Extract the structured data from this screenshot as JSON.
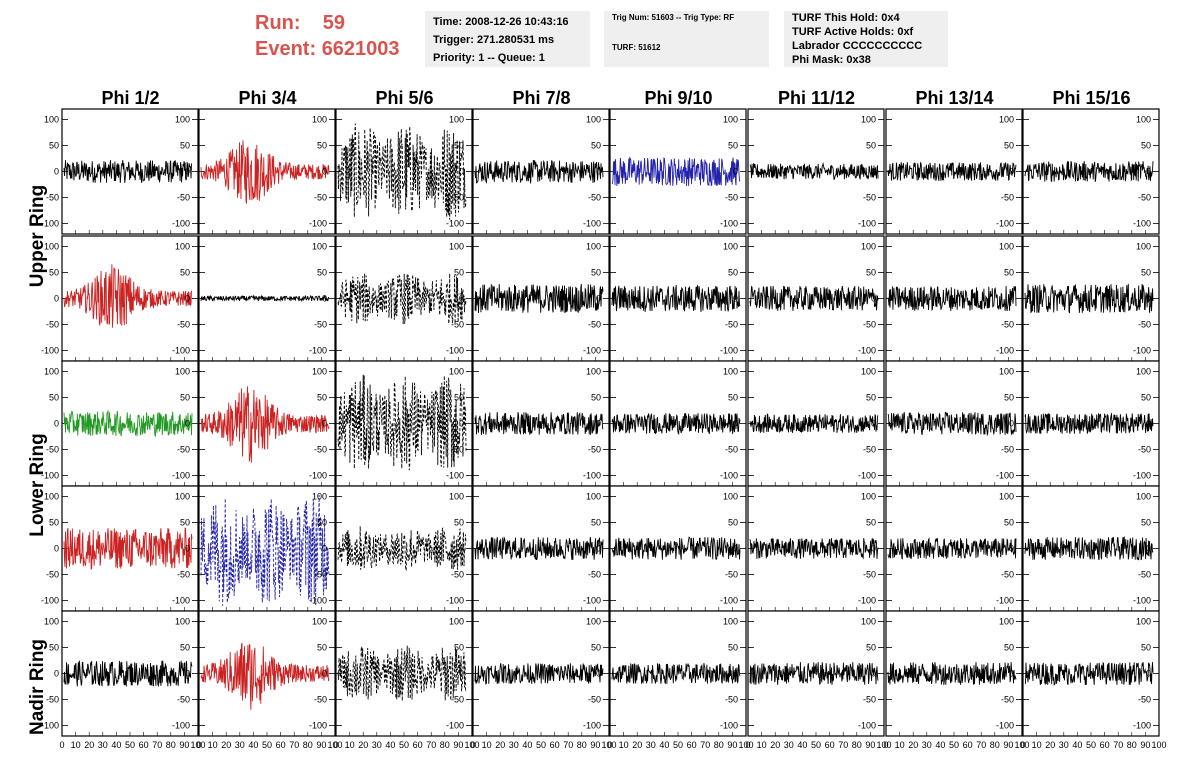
{
  "header": {
    "run_label": "Run:",
    "run_value": "59",
    "event_label": "Event:",
    "event_value": "6621003",
    "time_line": "Time: 2008-12-26 10:43:16",
    "trigger_line": "Trigger: 271.280531 ms",
    "priority_line": "Priority: 1 -- Queue: 1",
    "trig_num_line": "Trig Num: 51603 -- Trig Type: RF",
    "turf_line": "TURF: 51612",
    "turf_hold_line": "TURF This Hold: 0x4",
    "turf_active_line": "TURF Active Holds: 0xf",
    "labrador_line": "Labrador CCCCCCCCCC",
    "phi_mask_line": "Phi Mask: 0x38"
  },
  "chart_data": {
    "type": "line",
    "columns": [
      "Phi 1/2",
      "Phi 3/4",
      "Phi 5/6",
      "Phi 7/8",
      "Phi 9/10",
      "Phi 11/12",
      "Phi 13/14",
      "Phi 15/16"
    ],
    "rows": [
      "Upper Ring",
      "Upper Ring",
      "Lower Ring",
      "Lower Ring",
      "Nadir Ring"
    ],
    "ylim": [
      -120,
      120
    ],
    "xlim": [
      0,
      100
    ],
    "y_ticks": [
      100,
      50,
      0,
      -50,
      -100
    ],
    "x_ticks": [
      0,
      10,
      20,
      30,
      40,
      50,
      60,
      70,
      80,
      90,
      100
    ],
    "colors": {
      "black": "#000000",
      "red": "#cc2222",
      "blue": "#2222aa",
      "green": "#229922"
    },
    "panels": [
      [
        {
          "c": "black",
          "a": 22,
          "p": "noise"
        },
        {
          "c": "red",
          "a": 60,
          "p": "burst"
        },
        {
          "c": "black",
          "a": 95,
          "p": "dash"
        },
        {
          "c": "black",
          "a": 22,
          "p": "noise"
        },
        {
          "c": "blue",
          "a": 28,
          "p": "noise"
        },
        {
          "c": "black",
          "a": 15,
          "p": "noise"
        },
        {
          "c": "black",
          "a": 18,
          "p": "noise"
        },
        {
          "c": "black",
          "a": 20,
          "p": "noise"
        }
      ],
      [
        {
          "c": "red",
          "a": 60,
          "p": "burst"
        },
        {
          "c": "black",
          "a": 5,
          "p": "noise"
        },
        {
          "c": "black",
          "a": 50,
          "p": "dash"
        },
        {
          "c": "black",
          "a": 28,
          "p": "noise"
        },
        {
          "c": "black",
          "a": 26,
          "p": "noise"
        },
        {
          "c": "black",
          "a": 24,
          "p": "noise"
        },
        {
          "c": "black",
          "a": 24,
          "p": "noise"
        },
        {
          "c": "black",
          "a": 28,
          "p": "noise"
        }
      ],
      [
        {
          "c": "green",
          "a": 24,
          "p": "noise"
        },
        {
          "c": "red",
          "a": 70,
          "p": "burst"
        },
        {
          "c": "black",
          "a": 95,
          "p": "dash"
        },
        {
          "c": "black",
          "a": 22,
          "p": "noise"
        },
        {
          "c": "black",
          "a": 20,
          "p": "noise"
        },
        {
          "c": "black",
          "a": 18,
          "p": "noise"
        },
        {
          "c": "black",
          "a": 22,
          "p": "noise"
        },
        {
          "c": "black",
          "a": 20,
          "p": "noise"
        }
      ],
      [
        {
          "c": "red",
          "a": 40,
          "p": "noise"
        },
        {
          "c": "blue",
          "a": 110,
          "p": "dash"
        },
        {
          "c": "black",
          "a": 45,
          "p": "dash"
        },
        {
          "c": "black",
          "a": 22,
          "p": "noise"
        },
        {
          "c": "black",
          "a": 22,
          "p": "noise"
        },
        {
          "c": "black",
          "a": 20,
          "p": "noise"
        },
        {
          "c": "black",
          "a": 20,
          "p": "noise"
        },
        {
          "c": "black",
          "a": 22,
          "p": "noise"
        }
      ],
      [
        {
          "c": "black",
          "a": 25,
          "p": "noise"
        },
        {
          "c": "red",
          "a": 65,
          "p": "burst"
        },
        {
          "c": "black",
          "a": 55,
          "p": "dash"
        },
        {
          "c": "black",
          "a": 20,
          "p": "noise"
        },
        {
          "c": "black",
          "a": 20,
          "p": "noise"
        },
        {
          "c": "black",
          "a": 22,
          "p": "noise"
        },
        {
          "c": "black",
          "a": 22,
          "p": "noise"
        },
        {
          "c": "black",
          "a": 22,
          "p": "noise"
        }
      ]
    ]
  }
}
